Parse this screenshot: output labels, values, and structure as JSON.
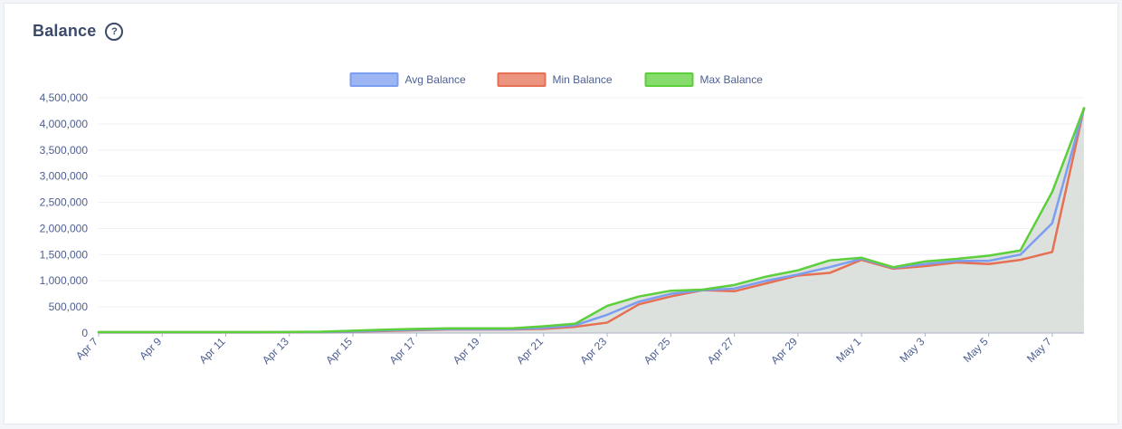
{
  "header": {
    "title": "Balance",
    "help_icon": "question-circle-icon"
  },
  "colors": {
    "avg": "#7b9ef0",
    "min": "#e57054",
    "max": "#5ccf3b",
    "area": "#d6dcd7",
    "axis_text": "#4d5f92",
    "grid": "#eef0f4"
  },
  "chart_data": {
    "type": "line",
    "title": "",
    "xlabel": "",
    "ylabel": "",
    "ylim": [
      0,
      4500000
    ],
    "yticks": [
      "0",
      "500,000",
      "1,000,000",
      "1,500,000",
      "2,000,000",
      "2,500,000",
      "3,000,000",
      "3,500,000",
      "4,000,000",
      "4,500,000"
    ],
    "x": [
      "Apr 7",
      "Apr 8",
      "Apr 9",
      "Apr 10",
      "Apr 11",
      "Apr 12",
      "Apr 13",
      "Apr 14",
      "Apr 15",
      "Apr 16",
      "Apr 17",
      "Apr 18",
      "Apr 19",
      "Apr 20",
      "Apr 21",
      "Apr 22",
      "Apr 23",
      "Apr 24",
      "Apr 25",
      "Apr 26",
      "Apr 27",
      "Apr 28",
      "Apr 29",
      "Apr 30",
      "May 1",
      "May 2",
      "May 3",
      "May 4",
      "May 5",
      "May 6",
      "May 7",
      "May 8"
    ],
    "x_tick_labels": [
      "Apr 7",
      "Apr 9",
      "Apr 11",
      "Apr 13",
      "Apr 15",
      "Apr 17",
      "Apr 19",
      "Apr 21",
      "Apr 23",
      "Apr 25",
      "Apr 27",
      "Apr 29",
      "May 1",
      "May 3",
      "May 5",
      "May 7"
    ],
    "legend_position": "top-center",
    "grid": true,
    "series": [
      {
        "name": "Avg Balance",
        "color_key": "avg",
        "values": [
          15000,
          15000,
          15000,
          15000,
          15000,
          15000,
          17000,
          18000,
          30000,
          50000,
          65000,
          75000,
          75000,
          75000,
          100000,
          150000,
          350000,
          600000,
          750000,
          820000,
          850000,
          1000000,
          1120000,
          1260000,
          1420000,
          1250000,
          1320000,
          1380000,
          1380000,
          1500000,
          2100000,
          4300000
        ]
      },
      {
        "name": "Min Balance",
        "color_key": "min",
        "values": [
          10000,
          10000,
          10000,
          10000,
          10000,
          10000,
          12000,
          15000,
          25000,
          40000,
          55000,
          70000,
          70000,
          70000,
          80000,
          120000,
          200000,
          550000,
          700000,
          820000,
          800000,
          950000,
          1100000,
          1150000,
          1400000,
          1230000,
          1280000,
          1350000,
          1320000,
          1400000,
          1550000,
          4300000
        ]
      },
      {
        "name": "Max Balance",
        "color_key": "max",
        "values": [
          20000,
          20000,
          20000,
          20000,
          20000,
          20000,
          22000,
          25000,
          45000,
          65000,
          80000,
          90000,
          90000,
          90000,
          130000,
          180000,
          520000,
          700000,
          810000,
          830000,
          920000,
          1080000,
          1200000,
          1390000,
          1440000,
          1260000,
          1370000,
          1420000,
          1480000,
          1580000,
          2700000,
          4300000
        ]
      }
    ]
  }
}
